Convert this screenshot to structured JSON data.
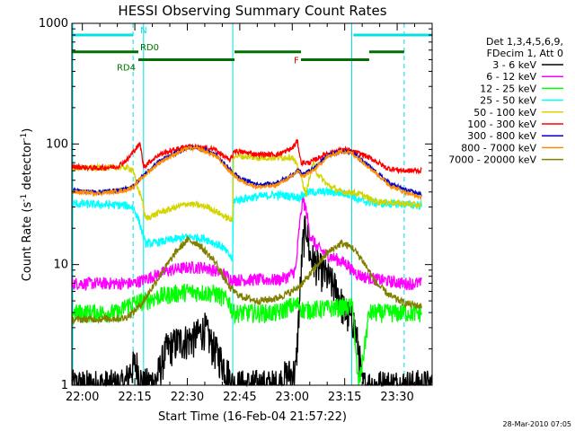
{
  "chart_data": {
    "type": "line",
    "title": "HESSI Observing Summary Count Rates",
    "xlabel": "Start Time (16-Feb-04 21:57:22)",
    "ylabel_main": "Count Rate (s",
    "ylabel_sup1": "-1",
    "ylabel_mid": " detector",
    "ylabel_sup2": "-1",
    "ylabel_end": ")",
    "footer": "28-Mar-2010 07:05",
    "y_scale": "log",
    "ylim": [
      1,
      1000
    ],
    "xlim_min": [
      -3,
      100
    ],
    "y_ticks": [
      {
        "v": 1,
        "label": "1"
      },
      {
        "v": 10,
        "label": "10"
      },
      {
        "v": 100,
        "label": "100"
      },
      {
        "v": 1000,
        "label": "1000"
      }
    ],
    "x_ticks": [
      {
        "m": 0,
        "label": "22:00"
      },
      {
        "m": 15,
        "label": "22:15"
      },
      {
        "m": 30,
        "label": "22:30"
      },
      {
        "m": 45,
        "label": "22:45"
      },
      {
        "m": 60,
        "label": "23:00"
      },
      {
        "m": 75,
        "label": "23:15"
      },
      {
        "m": 90,
        "label": "23:30"
      }
    ],
    "legend": {
      "header": [
        "Det 1,3,4,5,6,9,",
        "FDecim 1, Att 0"
      ],
      "entries": [
        {
          "label": "3 - 6 keV",
          "color": "#000000"
        },
        {
          "label": "6 - 12 keV",
          "color": "#ff00ff"
        },
        {
          "label": "12 - 25 keV",
          "color": "#00ff00"
        },
        {
          "label": "25 - 50 keV",
          "color": "#00ffff"
        },
        {
          "label": "50 - 100 keV",
          "color": "#d4d400"
        },
        {
          "label": "100 - 300 keV",
          "color": "#ff0000"
        },
        {
          "label": "300 - 800 keV",
          "color": "#0000c8"
        },
        {
          "label": "800 - 7000 keV",
          "color": "#ff8c00"
        },
        {
          "label": "7000 - 20000 keV",
          "color": "#808000"
        }
      ]
    },
    "bars": [
      {
        "label": "N",
        "color": "#00e0e0",
        "y": 800,
        "segments": [
          [
            -3,
            14.5
          ],
          [
            77.5,
            100
          ]
        ]
      },
      {
        "label": "F",
        "color": "#e00000",
        "y": 500,
        "segments": [
          [
            62.5,
            72
          ]
        ]
      },
      {
        "label": "RD0",
        "color": "#007000",
        "y": 580,
        "segments": [
          [
            -3,
            16
          ],
          [
            43.5,
            62.5
          ],
          [
            82,
            92
          ]
        ]
      },
      {
        "label": "RD4",
        "color": "#007000",
        "y": 500,
        "segments": [
          [
            16,
            43.5
          ],
          [
            62.5,
            82
          ]
        ]
      }
    ],
    "vlines": {
      "solid": [
        -3,
        17.5,
        43,
        77
      ],
      "dashed": [
        14.5,
        92
      ]
    },
    "series": [
      {
        "name": "3 - 6 keV",
        "color": "#000000",
        "noise": 0.35,
        "points": [
          [
            -3,
            1
          ],
          [
            12,
            1
          ],
          [
            14,
            1.4
          ],
          [
            15.5,
            1.5
          ],
          [
            16.5,
            1.2
          ],
          [
            17,
            1
          ],
          [
            21,
            1.1
          ],
          [
            24,
            2
          ],
          [
            27,
            2.3
          ],
          [
            32,
            2.5
          ],
          [
            35,
            3
          ],
          [
            37,
            2.2
          ],
          [
            41,
            1.4
          ],
          [
            43,
            1
          ],
          [
            56,
            1
          ],
          [
            58,
            1.2
          ],
          [
            61,
            1.3
          ],
          [
            63,
            15
          ],
          [
            64,
            22
          ],
          [
            65,
            12
          ],
          [
            67,
            10
          ],
          [
            70,
            8
          ],
          [
            73,
            6
          ],
          [
            75,
            4
          ],
          [
            77.5,
            3.5
          ],
          [
            79,
            2
          ],
          [
            80,
            1
          ],
          [
            100,
            1
          ]
        ]
      },
      {
        "name": "6 - 12 keV",
        "color": "#ff00ff",
        "noise": 0.12,
        "points": [
          [
            -3,
            7
          ],
          [
            14.5,
            7
          ],
          [
            17.5,
            7.5
          ],
          [
            20,
            8
          ],
          [
            25,
            9
          ],
          [
            30,
            9.5
          ],
          [
            35,
            9.5
          ],
          [
            40,
            8.5
          ],
          [
            43,
            7.5
          ],
          [
            56,
            7.5
          ],
          [
            59,
            8
          ],
          [
            61,
            9
          ],
          [
            62,
            20
          ],
          [
            63,
            35
          ],
          [
            64,
            28
          ],
          [
            65,
            18
          ],
          [
            67,
            14
          ],
          [
            70,
            12
          ],
          [
            73,
            11
          ],
          [
            76,
            10
          ],
          [
            77,
            9
          ],
          [
            80,
            8
          ],
          [
            85,
            7.5
          ],
          [
            92,
            7
          ],
          [
            97,
            7
          ]
        ]
      },
      {
        "name": "12 - 25 keV",
        "color": "#00ff00",
        "noise": 0.18,
        "points": [
          [
            -3,
            4
          ],
          [
            11,
            4
          ],
          [
            12,
            4.5
          ],
          [
            14.5,
            4.8
          ],
          [
            17.5,
            5
          ],
          [
            22,
            5.5
          ],
          [
            30,
            6
          ],
          [
            38,
            5.8
          ],
          [
            42,
            5
          ],
          [
            43,
            4
          ],
          [
            56,
            4
          ],
          [
            59,
            4.5
          ],
          [
            62,
            4.7
          ],
          [
            63,
            4.2
          ],
          [
            68,
            4.3
          ],
          [
            75,
            4.5
          ],
          [
            77.5,
            4.5
          ],
          [
            78,
            2
          ],
          [
            79,
            1
          ],
          [
            80,
            1.5
          ],
          [
            82,
            4
          ],
          [
            92,
            4
          ],
          [
            97,
            4
          ]
        ]
      },
      {
        "name": "25 - 50 keV",
        "color": "#00ffff",
        "noise": 0.08,
        "points": [
          [
            -3,
            32
          ],
          [
            12,
            31
          ],
          [
            14.5,
            30
          ],
          [
            16,
            24
          ],
          [
            18,
            15
          ],
          [
            20,
            15
          ],
          [
            25,
            16
          ],
          [
            30,
            17
          ],
          [
            35,
            16.5
          ],
          [
            40,
            14
          ],
          [
            43,
            11
          ],
          [
            43.2,
            34
          ],
          [
            48,
            36
          ],
          [
            55,
            38
          ],
          [
            60,
            37
          ],
          [
            62,
            36
          ],
          [
            63,
            38
          ],
          [
            65,
            40
          ],
          [
            70,
            40
          ],
          [
            75,
            39
          ],
          [
            77,
            38
          ],
          [
            79,
            34
          ],
          [
            82,
            33
          ],
          [
            86,
            32
          ],
          [
            90,
            32
          ],
          [
            97,
            31
          ]
        ]
      },
      {
        "name": "50 - 100 keV",
        "color": "#d4d400",
        "noise": 0.06,
        "points": [
          [
            -3,
            63
          ],
          [
            12,
            64
          ],
          [
            14.5,
            62
          ],
          [
            15.5,
            45
          ],
          [
            17,
            36
          ],
          [
            18,
            24
          ],
          [
            22,
            27
          ],
          [
            30,
            32
          ],
          [
            36,
            30
          ],
          [
            43,
            23
          ],
          [
            43.2,
            80
          ],
          [
            50,
            77
          ],
          [
            55,
            77
          ],
          [
            60,
            78
          ],
          [
            62,
            60
          ],
          [
            64,
            38
          ],
          [
            65,
            55
          ],
          [
            66,
            70
          ],
          [
            67,
            58
          ],
          [
            70,
            46
          ],
          [
            74,
            40
          ],
          [
            77,
            40
          ],
          [
            80,
            38
          ],
          [
            83,
            34
          ],
          [
            86,
            33
          ],
          [
            92,
            32
          ],
          [
            97,
            31
          ]
        ]
      },
      {
        "name": "100 - 300 keV",
        "color": "#ff0000",
        "noise": 0.05,
        "points": [
          [
            -3,
            65
          ],
          [
            4,
            63
          ],
          [
            10,
            65
          ],
          [
            13,
            75
          ],
          [
            15,
            90
          ],
          [
            16.5,
            100
          ],
          [
            17.5,
            65
          ],
          [
            22,
            82
          ],
          [
            30,
            96
          ],
          [
            38,
            90
          ],
          [
            42,
            73
          ],
          [
            43,
            80
          ],
          [
            43.2,
            88
          ],
          [
            50,
            82
          ],
          [
            56,
            82
          ],
          [
            60,
            92
          ],
          [
            61.5,
            106
          ],
          [
            62.5,
            70
          ],
          [
            65,
            70
          ],
          [
            70,
            84
          ],
          [
            75,
            90
          ],
          [
            80,
            82
          ],
          [
            84,
            72
          ],
          [
            87,
            63
          ],
          [
            92,
            60
          ],
          [
            97,
            60
          ]
        ]
      },
      {
        "name": "300 - 800 keV",
        "color": "#0000c8",
        "noise": 0.04,
        "points": [
          [
            -3,
            41
          ],
          [
            5,
            40
          ],
          [
            12,
            42
          ],
          [
            14.5,
            45
          ],
          [
            17.5,
            55
          ],
          [
            22,
            72
          ],
          [
            27,
            85
          ],
          [
            30,
            93
          ],
          [
            33,
            93
          ],
          [
            38,
            82
          ],
          [
            42,
            62
          ],
          [
            45,
            52
          ],
          [
            50,
            46
          ],
          [
            55,
            47
          ],
          [
            60,
            55
          ],
          [
            61.5,
            62
          ],
          [
            63,
            56
          ],
          [
            66,
            62
          ],
          [
            70,
            80
          ],
          [
            74,
            88
          ],
          [
            77,
            85
          ],
          [
            80,
            73
          ],
          [
            84,
            58
          ],
          [
            88,
            47
          ],
          [
            92,
            42
          ],
          [
            97,
            38
          ]
        ]
      },
      {
        "name": "800 - 7000 keV",
        "color": "#ff8c00",
        "noise": 0.04,
        "points": [
          [
            -3,
            40
          ],
          [
            5,
            39
          ],
          [
            12,
            41
          ],
          [
            14.5,
            44
          ],
          [
            17.5,
            54
          ],
          [
            22,
            70
          ],
          [
            27,
            84
          ],
          [
            30,
            92
          ],
          [
            33,
            92
          ],
          [
            38,
            80
          ],
          [
            42,
            60
          ],
          [
            45,
            50
          ],
          [
            50,
            44
          ],
          [
            55,
            45
          ],
          [
            60,
            54
          ],
          [
            61.5,
            60
          ],
          [
            63,
            54
          ],
          [
            66,
            60
          ],
          [
            70,
            78
          ],
          [
            74,
            87
          ],
          [
            77,
            84
          ],
          [
            80,
            72
          ],
          [
            84,
            57
          ],
          [
            88,
            45
          ],
          [
            92,
            40
          ],
          [
            97,
            36
          ]
        ]
      },
      {
        "name": "7000 - 20000 keV",
        "color": "#808000",
        "noise": 0.07,
        "points": [
          [
            -3,
            3.5
          ],
          [
            12,
            3.6
          ],
          [
            14.5,
            4
          ],
          [
            17.5,
            5
          ],
          [
            22,
            8
          ],
          [
            27,
            13
          ],
          [
            30,
            16
          ],
          [
            33,
            15
          ],
          [
            38,
            10.5
          ],
          [
            42,
            6.5
          ],
          [
            45,
            5.5
          ],
          [
            50,
            5
          ],
          [
            55,
            5.2
          ],
          [
            60,
            6
          ],
          [
            63,
            7
          ],
          [
            66,
            9
          ],
          [
            70,
            12.5
          ],
          [
            74,
            15
          ],
          [
            77,
            14
          ],
          [
            80,
            11
          ],
          [
            84,
            7
          ],
          [
            88,
            5.5
          ],
          [
            92,
            4.8
          ],
          [
            97,
            4.5
          ]
        ]
      }
    ]
  }
}
